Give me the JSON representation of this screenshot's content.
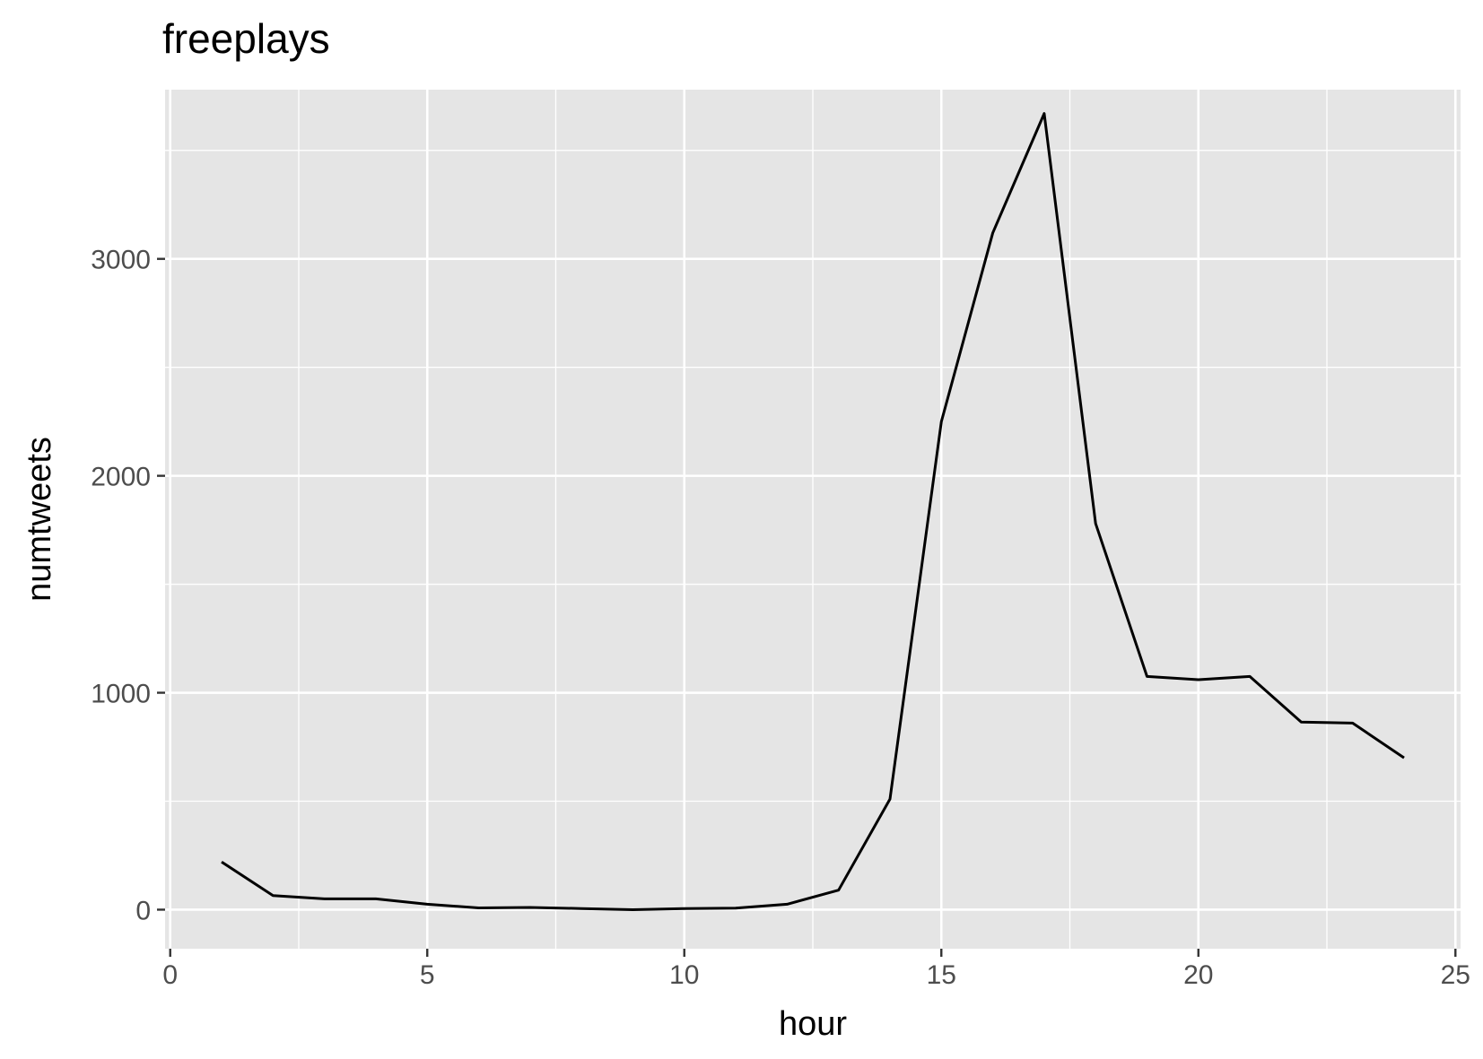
{
  "chart_data": {
    "type": "line",
    "title": "freeplays",
    "xlabel": "hour",
    "ylabel": "numtweets",
    "xlim": [
      -0.1,
      25.1
    ],
    "ylim": [
      -180,
      3780
    ],
    "x_ticks": [
      0,
      5,
      10,
      15,
      20,
      25
    ],
    "y_ticks": [
      0,
      1000,
      2000,
      3000
    ],
    "x_tick_labels": [
      "0",
      "5",
      "10",
      "15",
      "20",
      "25"
    ],
    "y_tick_labels": [
      "0",
      "1000",
      "2000",
      "3000"
    ],
    "grid": true,
    "background": "#e5e5e5",
    "line_color": "#000000",
    "series": [
      {
        "x": [
          1,
          2,
          3,
          4,
          5,
          6,
          7,
          8,
          9,
          10,
          11,
          12,
          13,
          14,
          15,
          16,
          17,
          18,
          19,
          20,
          21,
          22,
          23,
          24
        ],
        "values": [
          220,
          65,
          50,
          50,
          25,
          8,
          10,
          5,
          0,
          5,
          7,
          25,
          90,
          510,
          2250,
          3120,
          3670,
          1780,
          1075,
          1060,
          1075,
          865,
          860,
          700
        ]
      }
    ]
  }
}
